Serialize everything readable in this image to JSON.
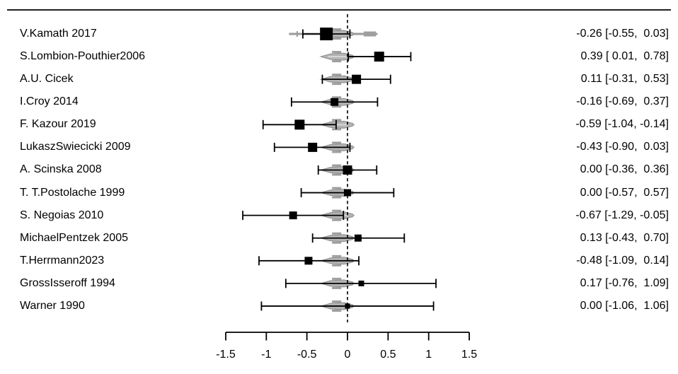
{
  "chart_data": {
    "type": "scatter",
    "variant": "forest-plot",
    "title": "",
    "x_axis": {
      "tick_labels": [
        "-1.5",
        "-1",
        "-0.5",
        "0",
        "0.5",
        "1",
        "1.5"
      ],
      "tick_values": [
        -1.5,
        -1,
        -0.5,
        0,
        0.5,
        1,
        1.5
      ],
      "range": [
        -1.72,
        1.72
      ],
      "zero_reference_line": 0
    },
    "legend": null,
    "grid": false,
    "studies": [
      {
        "label": "V.Kamath 2017",
        "estimate": -0.26,
        "ci_low": -0.55,
        "ci_high": 0.03,
        "value_text": "-0.26 [-0.55,  0.03]",
        "marker_size": 18,
        "gray_interval": [
          -0.72,
          0.37
        ]
      },
      {
        "label": "S.Lombion-Pouthier2006",
        "estimate": 0.39,
        "ci_low": 0.01,
        "ci_high": 0.78,
        "value_text": "0.39 [ 0.01,  0.78]",
        "marker_size": 14,
        "gray_interval": null
      },
      {
        "label": "A.U. Cicek",
        "estimate": 0.11,
        "ci_low": -0.31,
        "ci_high": 0.53,
        "value_text": "0.11 [-0.31,  0.53]",
        "marker_size": 13,
        "gray_interval": null
      },
      {
        "label": "I.Croy 2014",
        "estimate": -0.16,
        "ci_low": -0.69,
        "ci_high": 0.37,
        "value_text": "-0.16 [-0.69,  0.37]",
        "marker_size": 11,
        "gray_interval": null
      },
      {
        "label": "F. Kazour 2019",
        "estimate": -0.59,
        "ci_low": -1.04,
        "ci_high": -0.14,
        "value_text": "-0.59 [-1.04, -0.14]",
        "marker_size": 14,
        "gray_interval": null
      },
      {
        "label": "LukaszSwiecicki 2009",
        "estimate": -0.43,
        "ci_low": -0.9,
        "ci_high": 0.03,
        "value_text": "-0.43 [-0.90,  0.03]",
        "marker_size": 13,
        "gray_interval": null
      },
      {
        "label": "A. Scinska 2008",
        "estimate": 0.0,
        "ci_low": -0.36,
        "ci_high": 0.36,
        "value_text": "0.00 [-0.36,  0.36]",
        "marker_size": 13,
        "gray_interval": null
      },
      {
        "label": "T. T.Postolache 1999",
        "estimate": 0.0,
        "ci_low": -0.57,
        "ci_high": 0.57,
        "value_text": "0.00 [-0.57,  0.57]",
        "marker_size": 10,
        "gray_interval": null
      },
      {
        "label": "S. Negoias 2010",
        "estimate": -0.67,
        "ci_low": -1.29,
        "ci_high": -0.05,
        "value_text": "-0.67 [-1.29, -0.05]",
        "marker_size": 11,
        "gray_interval": null
      },
      {
        "label": "MichaelPentzek 2005",
        "estimate": 0.13,
        "ci_low": -0.43,
        "ci_high": 0.7,
        "value_text": "0.13 [-0.43,  0.70]",
        "marker_size": 10,
        "gray_interval": null
      },
      {
        "label": "T.Herrmann2023",
        "estimate": -0.48,
        "ci_low": -1.09,
        "ci_high": 0.14,
        "value_text": "-0.48 [-1.09,  0.14]",
        "marker_size": 11,
        "gray_interval": null
      },
      {
        "label": "GrossIsseroff 1994",
        "estimate": 0.17,
        "ci_low": -0.76,
        "ci_high": 1.09,
        "value_text": "0.17 [-0.76,  1.09]",
        "marker_size": 8,
        "gray_interval": null
      },
      {
        "label": "Warner 1990",
        "estimate": 0.0,
        "ci_low": -1.06,
        "ci_high": 1.06,
        "value_text": "0.00 [-1.06,  1.06]",
        "marker_size": 7,
        "gray_interval": null
      }
    ],
    "density_glyph_span": [
      -0.33,
      0.08
    ]
  },
  "colors": {
    "foreground": "#000000",
    "glyph_fill": "#b3b3b3",
    "glyph_stroke": "#8c8c8c",
    "glyph_highlight": "#d8d8d8",
    "glyph_bar": "#9e9e9e",
    "gray_interval": "#9a9a9a"
  }
}
